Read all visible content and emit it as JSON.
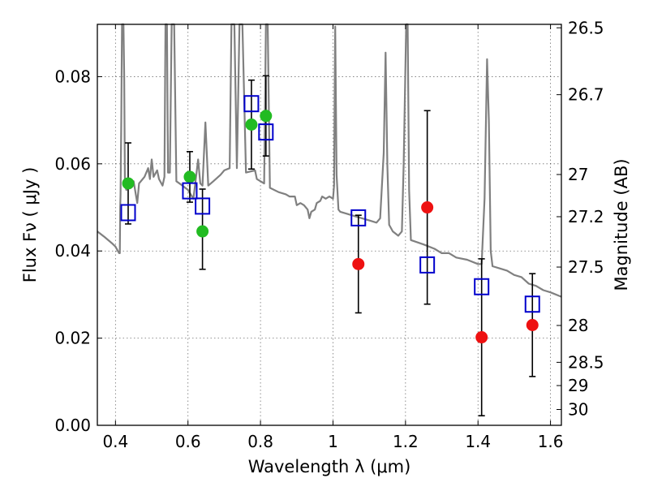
{
  "chart_data": {
    "type": "scatter",
    "title": "",
    "xlabel": "Wavelength  λ (μm)",
    "ylabel": "Flux  Fν  ( μJy )",
    "y2label": "Magnitude (AB)",
    "xlim": [
      0.35,
      1.63
    ],
    "ylim": [
      0.0,
      0.092
    ],
    "grid": true,
    "legend": "none",
    "x_ticks": [
      {
        "value": 0.4,
        "label": "0.4"
      },
      {
        "value": 0.6,
        "label": "0.6"
      },
      {
        "value": 0.8,
        "label": "0.8"
      },
      {
        "value": 1.0,
        "label": "1"
      },
      {
        "value": 1.2,
        "label": "1.2"
      },
      {
        "value": 1.4,
        "label": "1.4"
      },
      {
        "value": 1.6,
        "label": "1.6"
      }
    ],
    "y_ticks": [
      {
        "value": 0.0,
        "label": "0.00"
      },
      {
        "value": 0.02,
        "label": "0.02"
      },
      {
        "value": 0.04,
        "label": "0.04"
      },
      {
        "value": 0.06,
        "label": "0.06"
      },
      {
        "value": 0.08,
        "label": "0.08"
      }
    ],
    "magnitude_ticks": [
      {
        "value": 26.5,
        "label": "26.5"
      },
      {
        "value": 26.7,
        "label": "26.7"
      },
      {
        "value": 27.0,
        "label": "27"
      },
      {
        "value": 27.2,
        "label": "27.2"
      },
      {
        "value": 27.5,
        "label": "27.5"
      },
      {
        "value": 28.0,
        "label": "28"
      },
      {
        "value": 28.5,
        "label": "28.5"
      },
      {
        "value": 29.0,
        "label": "29"
      },
      {
        "value": 30.0,
        "label": "30"
      }
    ],
    "model_spectrum": {
      "color": "#808080",
      "points": [
        [
          0.35,
          0.0445
        ],
        [
          0.37,
          0.0432
        ],
        [
          0.39,
          0.0418
        ],
        [
          0.4,
          0.041
        ],
        [
          0.41,
          0.0395
        ],
        [
          0.412,
          0.0395
        ],
        [
          0.413,
          0.05
        ],
        [
          0.414,
          0.053
        ],
        [
          0.416,
          0.07
        ],
        [
          0.418,
          0.092
        ],
        [
          0.422,
          0.092
        ],
        [
          0.424,
          0.08
        ],
        [
          0.426,
          0.055
        ],
        [
          0.43,
          0.054
        ],
        [
          0.44,
          0.055
        ],
        [
          0.45,
          0.056
        ],
        [
          0.46,
          0.051
        ],
        [
          0.465,
          0.0555
        ],
        [
          0.48,
          0.057
        ],
        [
          0.49,
          0.059
        ],
        [
          0.495,
          0.0565
        ],
        [
          0.5,
          0.061
        ],
        [
          0.505,
          0.057
        ],
        [
          0.515,
          0.0585
        ],
        [
          0.52,
          0.0565
        ],
        [
          0.53,
          0.055
        ],
        [
          0.535,
          0.057
        ],
        [
          0.538,
          0.092
        ],
        [
          0.542,
          0.092
        ],
        [
          0.545,
          0.058
        ],
        [
          0.55,
          0.058
        ],
        [
          0.555,
          0.092
        ],
        [
          0.562,
          0.092
        ],
        [
          0.568,
          0.056
        ],
        [
          0.585,
          0.055
        ],
        [
          0.6,
          0.054
        ],
        [
          0.615,
          0.052
        ],
        [
          0.62,
          0.0555
        ],
        [
          0.628,
          0.061
        ],
        [
          0.634,
          0.0555
        ],
        [
          0.64,
          0.055
        ],
        [
          0.648,
          0.0695
        ],
        [
          0.656,
          0.055
        ],
        [
          0.67,
          0.056
        ],
        [
          0.69,
          0.0575
        ],
        [
          0.7,
          0.0585
        ],
        [
          0.715,
          0.059
        ],
        [
          0.72,
          0.092
        ],
        [
          0.728,
          0.092
        ],
        [
          0.735,
          0.059
        ],
        [
          0.742,
          0.092
        ],
        [
          0.75,
          0.092
        ],
        [
          0.76,
          0.058
        ],
        [
          0.785,
          0.0585
        ],
        [
          0.79,
          0.0565
        ],
        [
          0.8,
          0.056
        ],
        [
          0.81,
          0.0555
        ],
        [
          0.815,
          0.092
        ],
        [
          0.82,
          0.092
        ],
        [
          0.826,
          0.0545
        ],
        [
          0.85,
          0.0535
        ],
        [
          0.87,
          0.053
        ],
        [
          0.88,
          0.0525
        ],
        [
          0.895,
          0.0525
        ],
        [
          0.9,
          0.0505
        ],
        [
          0.91,
          0.051
        ],
        [
          0.92,
          0.0505
        ],
        [
          0.93,
          0.0495
        ],
        [
          0.935,
          0.0475
        ],
        [
          0.94,
          0.049
        ],
        [
          0.95,
          0.0495
        ],
        [
          0.955,
          0.051
        ],
        [
          0.965,
          0.0515
        ],
        [
          0.97,
          0.0525
        ],
        [
          0.98,
          0.052
        ],
        [
          0.99,
          0.0525
        ],
        [
          1.0,
          0.052
        ],
        [
          1.003,
          0.055
        ],
        [
          1.006,
          0.0915
        ],
        [
          1.01,
          0.0575
        ],
        [
          1.015,
          0.0495
        ],
        [
          1.02,
          0.049
        ],
        [
          1.04,
          0.0485
        ],
        [
          1.06,
          0.048
        ],
        [
          1.08,
          0.0475
        ],
        [
          1.1,
          0.047
        ],
        [
          1.12,
          0.0465
        ],
        [
          1.13,
          0.0475
        ],
        [
          1.14,
          0.0625
        ],
        [
          1.145,
          0.0855
        ],
        [
          1.15,
          0.0595
        ],
        [
          1.155,
          0.046
        ],
        [
          1.165,
          0.0445
        ],
        [
          1.18,
          0.0435
        ],
        [
          1.19,
          0.0445
        ],
        [
          1.195,
          0.06
        ],
        [
          1.202,
          0.092
        ],
        [
          1.206,
          0.092
        ],
        [
          1.21,
          0.054
        ],
        [
          1.215,
          0.0425
        ],
        [
          1.25,
          0.0415
        ],
        [
          1.28,
          0.0405
        ],
        [
          1.3,
          0.0395
        ],
        [
          1.32,
          0.0395
        ],
        [
          1.34,
          0.0385
        ],
        [
          1.37,
          0.038
        ],
        [
          1.4,
          0.037
        ],
        [
          1.41,
          0.037
        ],
        [
          1.418,
          0.052
        ],
        [
          1.425,
          0.084
        ],
        [
          1.43,
          0.07
        ],
        [
          1.435,
          0.04
        ],
        [
          1.44,
          0.0365
        ],
        [
          1.46,
          0.036
        ],
        [
          1.48,
          0.0355
        ],
        [
          1.5,
          0.0345
        ],
        [
          1.52,
          0.034
        ],
        [
          1.54,
          0.0325
        ],
        [
          1.56,
          0.032
        ],
        [
          1.58,
          0.031
        ],
        [
          1.6,
          0.0305
        ],
        [
          1.63,
          0.0295
        ]
      ]
    },
    "series": [
      {
        "marker": "circle",
        "color": "#22bb22",
        "filled": true,
        "points": [
          {
            "x": 0.435,
            "y": 0.0555
          },
          {
            "x": 0.605,
            "y": 0.057
          },
          {
            "x": 0.64,
            "y": 0.0445
          },
          {
            "x": 0.775,
            "y": 0.069
          },
          {
            "x": 0.815,
            "y": 0.071
          }
        ]
      },
      {
        "marker": "circle",
        "color": "#ee1111",
        "filled": true,
        "points": [
          {
            "x": 1.07,
            "y": 0.037
          },
          {
            "x": 1.26,
            "y": 0.05
          },
          {
            "x": 1.41,
            "y": 0.0202
          },
          {
            "x": 1.55,
            "y": 0.023
          }
        ]
      },
      {
        "marker": "square",
        "color": "#0000cc",
        "filled": false,
        "points": [
          {
            "x": 0.435,
            "y": 0.0488,
            "yerr": [
              0.0462,
              0.0648
            ]
          },
          {
            "x": 0.605,
            "y": 0.0538,
            "yerr": [
              0.0512,
              0.0628
            ]
          },
          {
            "x": 0.64,
            "y": 0.0503,
            "yerr": [
              0.0358,
              0.0542
            ]
          },
          {
            "x": 0.775,
            "y": 0.0738,
            "yerr": [
              0.0588,
              0.0792
            ]
          },
          {
            "x": 0.815,
            "y": 0.0673,
            "yerr": [
              0.0618,
              0.0802
            ]
          },
          {
            "x": 1.07,
            "y": 0.0476,
            "yerr": [
              0.0258,
              0.0482
            ]
          },
          {
            "x": 1.26,
            "y": 0.0368,
            "yerr": [
              0.0278,
              0.0722
            ]
          },
          {
            "x": 1.41,
            "y": 0.0318,
            "yerr": [
              0.0022,
              0.0382
            ]
          },
          {
            "x": 1.55,
            "y": 0.0278,
            "yerr": [
              0.0112,
              0.0348
            ]
          }
        ]
      }
    ]
  }
}
